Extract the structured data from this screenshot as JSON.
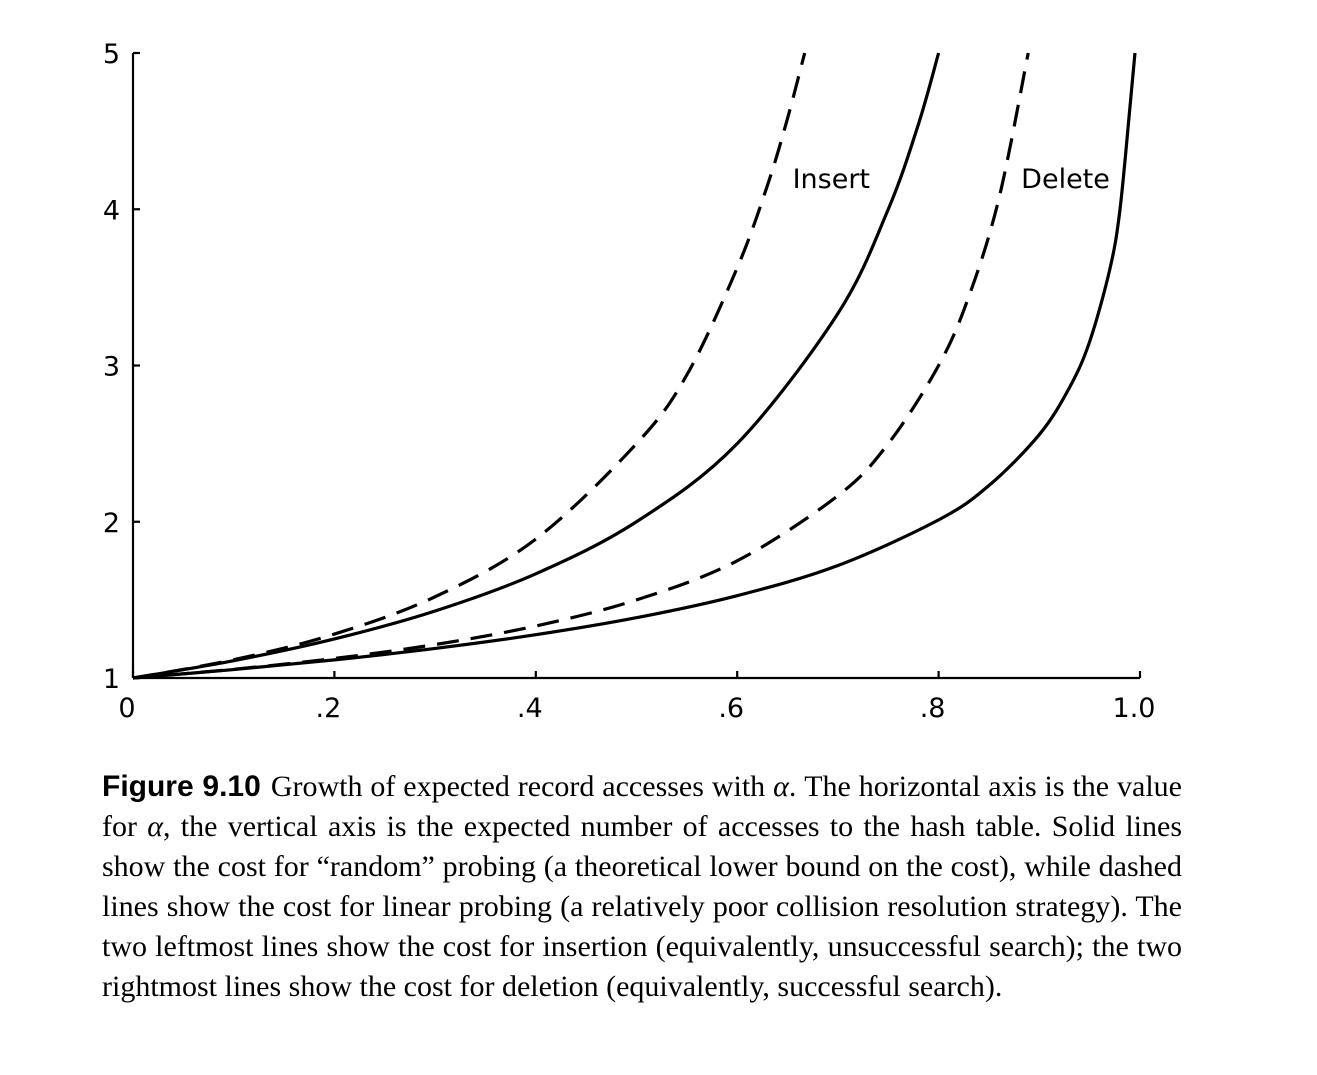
{
  "chart_data": {
    "type": "line",
    "title": "",
    "xlabel": "",
    "ylabel": "",
    "xlim": [
      0,
      1.0
    ],
    "ylim": [
      1,
      5
    ],
    "x_ticks": [
      {
        "value": 0,
        "label": "0"
      },
      {
        "value": 0.2,
        "label": ".2"
      },
      {
        "value": 0.4,
        "label": ".4"
      },
      {
        "value": 0.6,
        "label": ".6"
      },
      {
        "value": 0.8,
        "label": ".8"
      },
      {
        "value": 1.0,
        "label": "1.0"
      }
    ],
    "y_ticks": [
      {
        "value": 1,
        "label": "1"
      },
      {
        "value": 2,
        "label": "2"
      },
      {
        "value": 3,
        "label": "3"
      },
      {
        "value": 4,
        "label": "4"
      },
      {
        "value": 5,
        "label": "5"
      }
    ],
    "grid": false,
    "series": [
      {
        "style": "dashed",
        "x": [
          0,
          0.1,
          0.2,
          0.3,
          0.4,
          0.5,
          0.55,
          0.6,
          0.63,
          0.65,
          0.667
        ],
        "y": [
          1.0,
          1.117,
          1.281,
          1.52,
          1.889,
          2.5,
          2.94,
          3.625,
          4.152,
          4.582,
          5.0
        ]
      },
      {
        "style": "solid",
        "x": [
          0,
          0.1,
          0.2,
          0.3,
          0.4,
          0.5,
          0.6,
          0.7,
          0.75,
          0.78,
          0.8
        ],
        "y": [
          1.0,
          1.111,
          1.25,
          1.429,
          1.667,
          2.0,
          2.5,
          3.333,
          4.0,
          4.545,
          5.0
        ]
      },
      {
        "style": "dashed",
        "x": [
          0,
          0.1,
          0.2,
          0.3,
          0.4,
          0.5,
          0.6,
          0.7,
          0.75,
          0.8,
          0.83,
          0.86,
          0.889
        ],
        "y": [
          1.0,
          1.056,
          1.125,
          1.214,
          1.333,
          1.5,
          1.75,
          2.167,
          2.5,
          3.0,
          3.441,
          4.071,
          5.0
        ]
      },
      {
        "style": "solid",
        "x": [
          0,
          0.1,
          0.2,
          0.3,
          0.4,
          0.5,
          0.6,
          0.7,
          0.8,
          0.85,
          0.9,
          0.93,
          0.95,
          0.97,
          0.98,
          0.99,
          0.995
        ],
        "y": [
          1.0,
          1.054,
          1.116,
          1.189,
          1.277,
          1.386,
          1.527,
          1.72,
          2.012,
          2.232,
          2.558,
          2.859,
          3.153,
          3.615,
          3.992,
          4.652,
          5.0
        ]
      }
    ],
    "annotations": [
      {
        "text": "Insert",
        "x": 0.655,
        "y": 4.2
      },
      {
        "text": "Delete",
        "x": 0.882,
        "y": 4.2
      }
    ]
  },
  "caption": {
    "label": "Figure 9.10",
    "text_1": "Growth of expected record accesses with ",
    "alpha_1": "α",
    "text_2": ". The horizontal axis is the value for ",
    "alpha_2": "α",
    "text_3": ", the vertical axis is the expected number of accesses to the hash table. Solid lines show the cost for “random” probing (a theoretical lower bound on the cost), while dashed lines show the cost for linear probing (a relatively poor collision resolution strategy). The two leftmost lines show the cost for insertion (equivalently, unsuccessful search); the two rightmost lines show the cost for deletion (equivalently, successful search)."
  }
}
